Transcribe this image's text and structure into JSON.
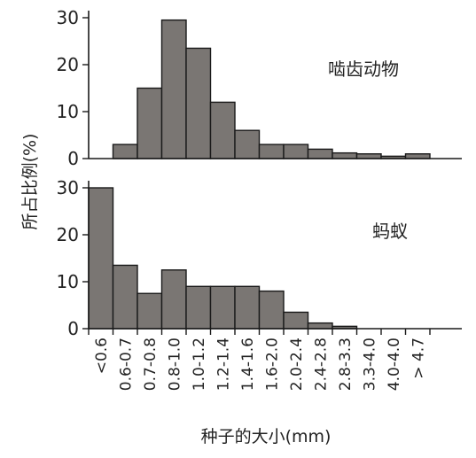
{
  "chart_data": {
    "type": "bar",
    "categories": [
      "<0.6",
      "0.6-0.7",
      "0.7-0.8",
      "0.8-1.0",
      "1.0-1.2",
      "1.2-1.4",
      "1.4-1.6",
      "1.6-2.0",
      "2.0-2.4",
      "2.4-2.8",
      "2.8-3.3",
      "3.3-4.0",
      "4.0-4.0",
      "> 4.7"
    ],
    "xlabel": "种子的大小(mm)",
    "ylabel": "所占比例(%)",
    "panels": [
      {
        "label": "啮齿动物",
        "ylim": [
          0,
          30
        ],
        "yticks": [
          0,
          10,
          20,
          30
        ],
        "values": [
          0,
          3,
          15,
          29.5,
          23.5,
          12,
          6,
          3,
          3,
          2,
          1.2,
          1,
          0.5,
          1
        ]
      },
      {
        "label": "蚂蚁",
        "ylim": [
          0,
          30
        ],
        "yticks": [
          0,
          10,
          20,
          30
        ],
        "values": [
          30,
          13.5,
          7.5,
          12.5,
          9,
          9,
          9,
          8,
          3.5,
          1.2,
          0.5,
          0,
          0,
          0
        ]
      }
    ]
  }
}
